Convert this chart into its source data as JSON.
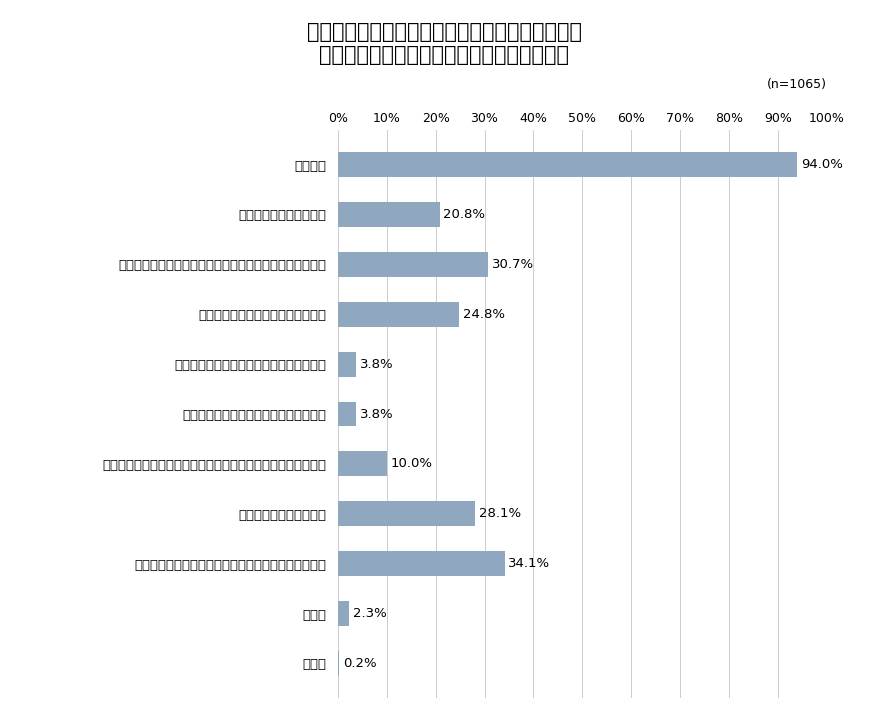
{
  "title_line1": "》契約時における情報セキュリティに関する要請",
  "title_line2": "（仕入先（委託・協力企業）との契約時）》",
  "title_line1_raw": "【契約時における情報セキュリティに関する要請",
  "title_line2_raw": "（仕入先（委託・協力企業）との契約時）】",
  "n_label": "(n=1065)",
  "categories": [
    "秘密保持",
    "証跡の提示、監査協力等",
    "情報セキュリティに関する契約内容に違反した場合の措置",
    "インシデントが発生した場合の対応",
    "可用性（稼働率の水準、目標復旧時間等）",
    "認証（ＩＳＭＳ等）取得の依頼／要件化",
    "新たな脅威（ぜい弱性等）が顕在化した場合の情報共有・対応",
    "再委託の禁止または制限",
    "契約終了後の情報資産の扱い（返却、消去、廃棄等）",
    "その他",
    "無回答"
  ],
  "values": [
    94.0,
    20.8,
    30.7,
    24.8,
    3.8,
    3.8,
    10.0,
    28.1,
    34.1,
    2.3,
    0.2
  ],
  "bar_color": "#8fa8c0",
  "background_color": "#ffffff",
  "xlim": [
    0,
    100
  ],
  "xticks": [
    0,
    10,
    20,
    30,
    40,
    50,
    60,
    70,
    80,
    90,
    100
  ],
  "xtick_labels": [
    "0%",
    "10%",
    "20%",
    "30%",
    "40%",
    "50%",
    "60%",
    "70%",
    "80%",
    "90%",
    "100%"
  ],
  "title_fontsize": 15,
  "label_fontsize": 9.5,
  "value_fontsize": 9.5,
  "tick_fontsize": 9
}
